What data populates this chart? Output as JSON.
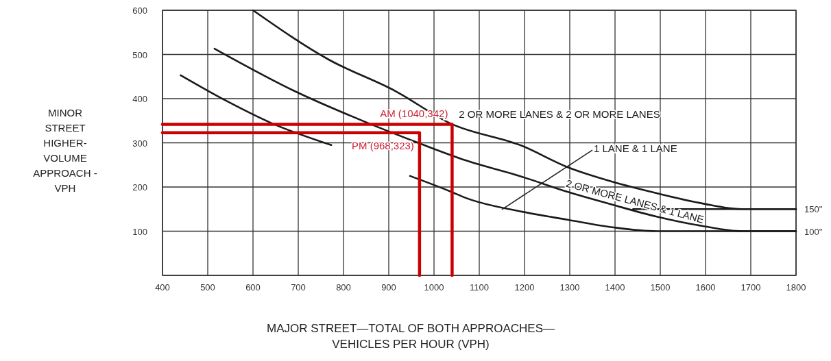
{
  "chart_data": {
    "type": "line",
    "xlabel": "MAJOR STREET—TOTAL OF BOTH APPROACHES—VEHICLES PER HOUR (VPH)",
    "ylabel": "MINOR STREET HIGHER-VOLUME APPROACH - VPH",
    "xlim": [
      400,
      1800
    ],
    "xticks": [
      400,
      500,
      600,
      700,
      800,
      900,
      1000,
      1100,
      1200,
      1300,
      1400,
      1500,
      1600,
      1700,
      1800
    ],
    "ylim": [
      0,
      600
    ],
    "yticks": [
      {
        "value": 0,
        "label": null
      },
      100,
      200,
      300,
      400,
      500,
      600
    ],
    "grid": true,
    "legend": false,
    "marker": "none",
    "line_style": "solid",
    "series": [
      {
        "name": "2 OR MORE LANES & 2 OR MORE LANES",
        "color": "#1a1a1a",
        "x": [
          600,
          768,
          915,
          1036,
          1195,
          1295,
          1394,
          1492,
          1592,
          1680,
          1800
        ],
        "values": [
          600,
          488,
          417,
          344,
          293,
          245,
          212,
          186,
          163,
          150,
          150
        ]
      },
      {
        "name": "2 OR MORE LANES & 1 LANE",
        "color": "#1a1a1a",
        "x": [
          515,
          692,
          844,
          970,
          1071,
          1195,
          1295,
          1394,
          1492,
          1592,
          1680,
          1800
        ],
        "values": [
          513,
          417,
          349,
          298,
          260,
          223,
          189,
          160,
          133,
          112,
          100,
          100
        ]
      },
      {
        "color": "#1a1a1a",
        "x": [
          1440,
          1800
        ],
        "values": [
          150,
          150
        ]
      },
      {
        "name": "1 LANE & 1 LANE",
        "color": "#1a1a1a",
        "x": [
          440,
          541,
          642,
          773,
          860,
          947,
          1036,
          1071,
          1195,
          1295,
          1394,
          1492,
          1600,
          1800
        ],
        "values": [
          453,
          395,
          344,
          295,
          null,
          225,
          190,
          175,
          144,
          126,
          109,
          100,
          100,
          100
        ]
      },
      {
        "color": "#cc0000",
        "x": [
          400,
          1040,
          1040
        ],
        "values": [
          342,
          342,
          0
        ]
      },
      {
        "color": "#cc0000",
        "x": [
          400,
          968,
          968
        ],
        "values": [
          323,
          323,
          0
        ]
      }
    ],
    "annotations": [
      {
        "text": "AM (1040,342)",
        "x": 1040,
        "y": 342
      },
      {
        "text": "PM (968,323)",
        "x": 968,
        "y": 323
      },
      {
        "text": "150\"",
        "x": 1800,
        "y": 150
      },
      {
        "text": "100\"",
        "x": 1800,
        "y": 100
      }
    ]
  }
}
